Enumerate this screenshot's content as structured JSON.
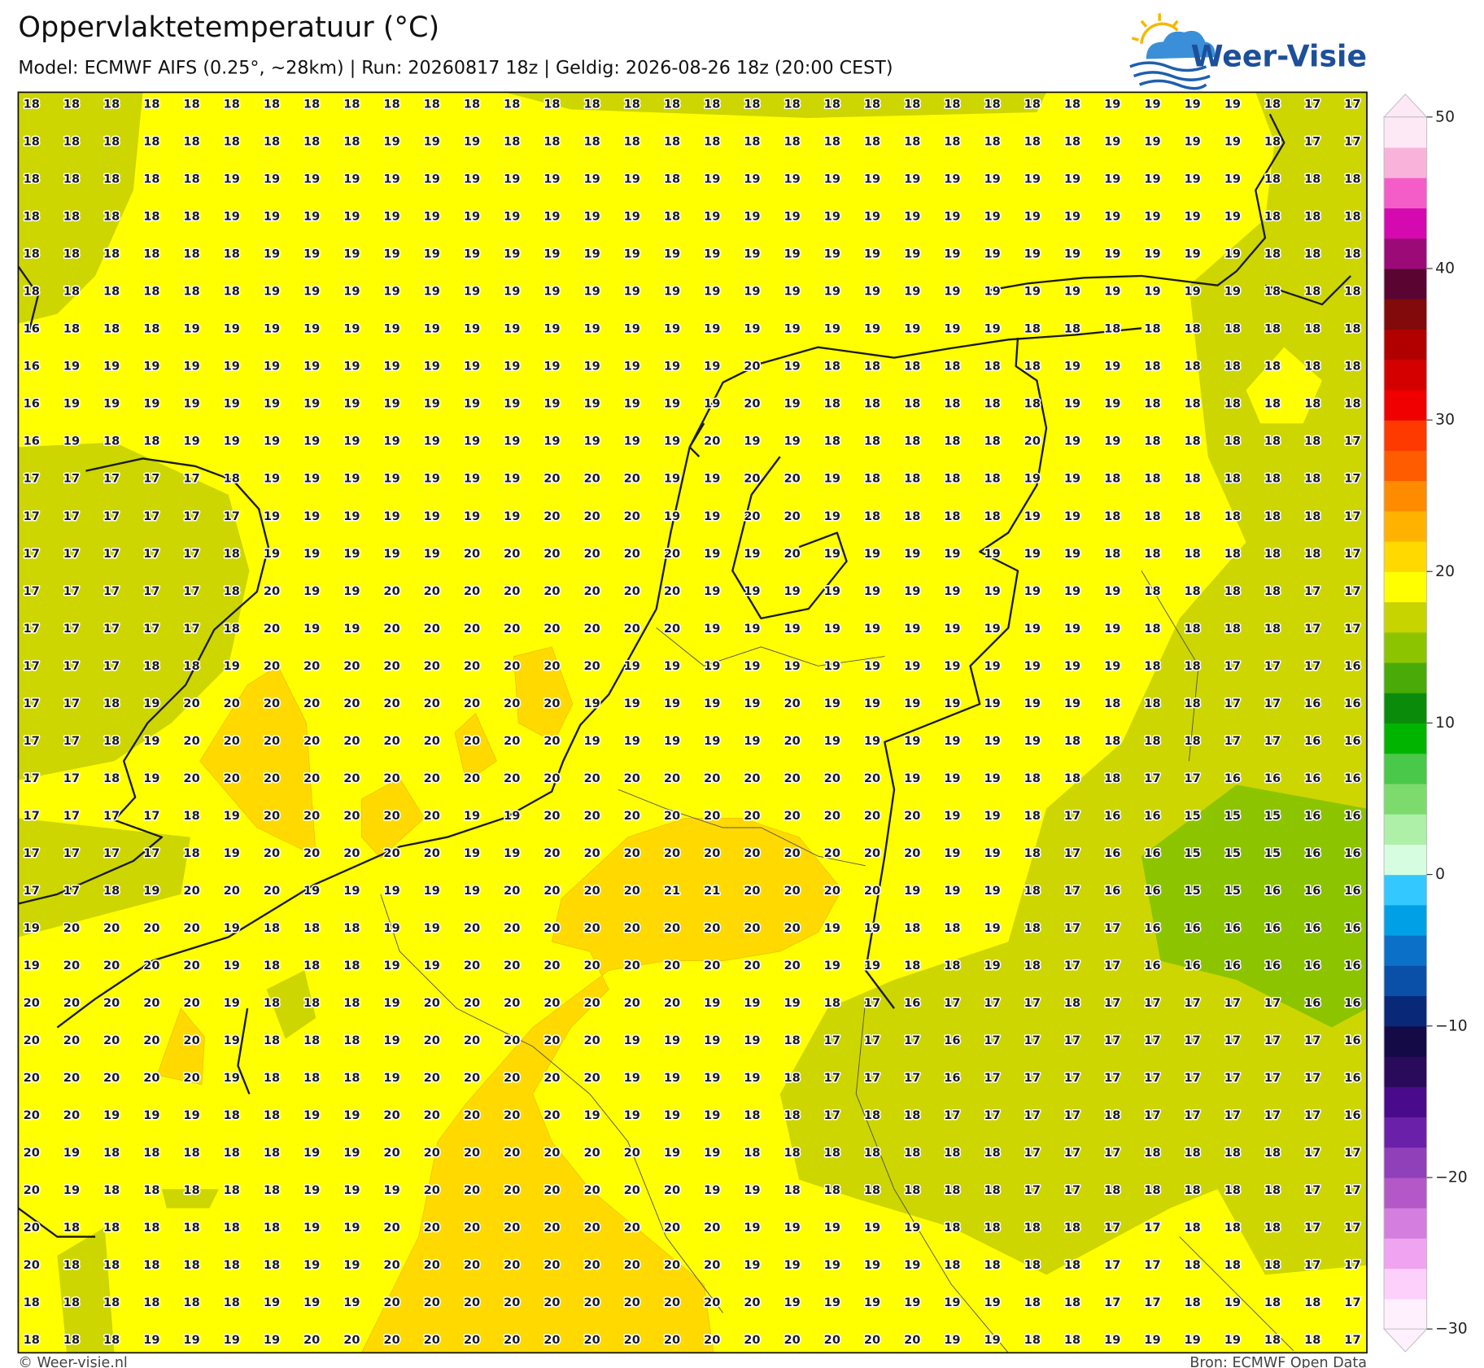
{
  "header": {
    "title": "Oppervlaktetemperatuur (°C)",
    "subtitle": "Model: ECMWF AIFS (0.25°, ~28km)  |  Run: 20260817 18z  |  Geldig: 2026-08-26 18z (20:00 CEST)",
    "logo": "Weer-Visie"
  },
  "grid": {
    "rows": [
      [
        18,
        18,
        18,
        18,
        18,
        18,
        18,
        18,
        18,
        18,
        18,
        18,
        18,
        18,
        18,
        18,
        18,
        18,
        18,
        18,
        18,
        18,
        18,
        18,
        18,
        18,
        18,
        19,
        19,
        19,
        19,
        18,
        17,
        17
      ],
      [
        18,
        18,
        18,
        18,
        18,
        18,
        18,
        18,
        18,
        19,
        19,
        19,
        18,
        18,
        18,
        18,
        18,
        18,
        18,
        18,
        18,
        18,
        18,
        18,
        18,
        18,
        18,
        19,
        19,
        19,
        19,
        18,
        17,
        17
      ],
      [
        18,
        18,
        18,
        18,
        18,
        19,
        19,
        19,
        19,
        19,
        19,
        19,
        19,
        19,
        19,
        19,
        18,
        19,
        19,
        19,
        19,
        19,
        19,
        19,
        19,
        19,
        19,
        19,
        19,
        19,
        19,
        18,
        18,
        18
      ],
      [
        18,
        18,
        18,
        18,
        18,
        19,
        19,
        19,
        19,
        19,
        19,
        19,
        19,
        19,
        19,
        19,
        18,
        19,
        19,
        19,
        19,
        19,
        19,
        19,
        19,
        19,
        19,
        19,
        19,
        19,
        19,
        18,
        18,
        18
      ],
      [
        18,
        18,
        18,
        18,
        18,
        18,
        19,
        19,
        19,
        19,
        19,
        19,
        19,
        19,
        19,
        19,
        19,
        19,
        19,
        19,
        19,
        19,
        19,
        19,
        19,
        19,
        19,
        19,
        19,
        19,
        19,
        18,
        18,
        18
      ],
      [
        18,
        18,
        18,
        18,
        18,
        18,
        19,
        19,
        19,
        19,
        19,
        19,
        19,
        19,
        19,
        19,
        19,
        19,
        19,
        19,
        19,
        19,
        19,
        19,
        19,
        19,
        19,
        19,
        19,
        19,
        19,
        18,
        18,
        18
      ],
      [
        16,
        18,
        18,
        18,
        19,
        19,
        19,
        19,
        19,
        19,
        19,
        19,
        19,
        19,
        19,
        19,
        19,
        19,
        19,
        19,
        19,
        19,
        19,
        19,
        19,
        18,
        18,
        18,
        18,
        18,
        18,
        18,
        18,
        18
      ],
      [
        16,
        19,
        19,
        19,
        19,
        19,
        19,
        19,
        19,
        19,
        19,
        19,
        19,
        19,
        19,
        19,
        19,
        19,
        20,
        19,
        18,
        18,
        18,
        18,
        18,
        18,
        19,
        19,
        18,
        18,
        18,
        18,
        18,
        18
      ],
      [
        16,
        19,
        19,
        19,
        19,
        19,
        19,
        19,
        19,
        19,
        19,
        19,
        19,
        19,
        19,
        19,
        19,
        19,
        20,
        19,
        18,
        18,
        18,
        18,
        18,
        18,
        19,
        19,
        18,
        18,
        18,
        18,
        18,
        18
      ],
      [
        16,
        19,
        18,
        18,
        19,
        19,
        19,
        19,
        19,
        19,
        19,
        19,
        19,
        19,
        19,
        19,
        19,
        20,
        19,
        19,
        18,
        18,
        18,
        18,
        18,
        20,
        19,
        19,
        18,
        18,
        18,
        18,
        18,
        17
      ],
      [
        17,
        17,
        17,
        17,
        17,
        18,
        19,
        19,
        19,
        19,
        19,
        19,
        19,
        20,
        20,
        20,
        19,
        19,
        20,
        20,
        19,
        18,
        18,
        18,
        18,
        19,
        19,
        18,
        18,
        18,
        18,
        18,
        18,
        17
      ],
      [
        17,
        17,
        17,
        17,
        17,
        17,
        19,
        19,
        19,
        19,
        19,
        19,
        19,
        20,
        20,
        20,
        19,
        19,
        20,
        20,
        19,
        18,
        18,
        18,
        18,
        19,
        19,
        18,
        18,
        18,
        18,
        18,
        18,
        17
      ],
      [
        17,
        17,
        17,
        17,
        17,
        18,
        19,
        19,
        19,
        19,
        19,
        20,
        20,
        20,
        20,
        20,
        20,
        19,
        19,
        20,
        19,
        19,
        19,
        19,
        19,
        19,
        19,
        18,
        18,
        18,
        18,
        18,
        18,
        17
      ],
      [
        17,
        17,
        17,
        17,
        17,
        18,
        20,
        19,
        19,
        20,
        20,
        20,
        20,
        20,
        20,
        20,
        20,
        19,
        19,
        19,
        19,
        19,
        19,
        19,
        19,
        19,
        19,
        19,
        18,
        18,
        18,
        18,
        17,
        17
      ],
      [
        17,
        17,
        17,
        17,
        17,
        18,
        20,
        19,
        19,
        20,
        20,
        20,
        20,
        20,
        20,
        20,
        20,
        19,
        19,
        19,
        19,
        19,
        19,
        19,
        19,
        19,
        19,
        19,
        18,
        18,
        18,
        18,
        17,
        17
      ],
      [
        17,
        17,
        17,
        18,
        18,
        19,
        20,
        20,
        20,
        20,
        20,
        20,
        20,
        20,
        20,
        19,
        19,
        19,
        19,
        19,
        19,
        19,
        19,
        19,
        19,
        19,
        19,
        19,
        18,
        18,
        17,
        17,
        17,
        16
      ],
      [
        17,
        17,
        18,
        19,
        20,
        20,
        20,
        20,
        20,
        20,
        20,
        20,
        20,
        20,
        19,
        19,
        19,
        19,
        19,
        20,
        19,
        19,
        19,
        19,
        19,
        19,
        19,
        18,
        18,
        18,
        17,
        17,
        16,
        16
      ],
      [
        17,
        17,
        18,
        19,
        20,
        20,
        20,
        20,
        20,
        20,
        20,
        20,
        20,
        20,
        19,
        19,
        19,
        19,
        19,
        20,
        19,
        19,
        19,
        19,
        19,
        19,
        18,
        18,
        18,
        18,
        17,
        17,
        16,
        16
      ],
      [
        17,
        17,
        18,
        19,
        20,
        20,
        20,
        20,
        20,
        20,
        20,
        20,
        20,
        20,
        20,
        20,
        20,
        20,
        20,
        20,
        20,
        20,
        19,
        19,
        19,
        18,
        18,
        18,
        17,
        17,
        16,
        16,
        16,
        16
      ],
      [
        17,
        17,
        17,
        17,
        18,
        19,
        20,
        20,
        20,
        20,
        20,
        19,
        19,
        20,
        20,
        20,
        20,
        20,
        20,
        20,
        20,
        20,
        20,
        19,
        19,
        18,
        17,
        16,
        16,
        15,
        15,
        15,
        16,
        16
      ],
      [
        17,
        17,
        17,
        17,
        18,
        19,
        20,
        20,
        20,
        20,
        20,
        19,
        19,
        20,
        20,
        20,
        20,
        20,
        20,
        20,
        20,
        20,
        20,
        19,
        19,
        18,
        17,
        16,
        16,
        15,
        15,
        15,
        16,
        16
      ],
      [
        17,
        17,
        18,
        19,
        20,
        20,
        20,
        19,
        19,
        19,
        19,
        19,
        20,
        20,
        20,
        20,
        21,
        21,
        20,
        20,
        20,
        20,
        19,
        19,
        19,
        18,
        17,
        16,
        16,
        15,
        15,
        16,
        16,
        16
      ],
      [
        19,
        20,
        20,
        20,
        20,
        19,
        18,
        18,
        18,
        19,
        19,
        20,
        20,
        20,
        20,
        20,
        20,
        20,
        20,
        20,
        19,
        19,
        18,
        18,
        19,
        18,
        17,
        17,
        16,
        16,
        16,
        16,
        16,
        16
      ],
      [
        19,
        20,
        20,
        20,
        20,
        19,
        18,
        18,
        18,
        19,
        19,
        20,
        20,
        20,
        20,
        20,
        20,
        20,
        20,
        20,
        19,
        19,
        18,
        18,
        19,
        18,
        17,
        17,
        16,
        16,
        16,
        16,
        16,
        16
      ],
      [
        20,
        20,
        20,
        20,
        20,
        19,
        18,
        18,
        18,
        19,
        20,
        20,
        20,
        20,
        20,
        20,
        20,
        19,
        19,
        19,
        18,
        17,
        16,
        17,
        17,
        17,
        18,
        17,
        17,
        17,
        17,
        17,
        16,
        16
      ],
      [
        20,
        20,
        20,
        20,
        20,
        19,
        18,
        18,
        18,
        19,
        20,
        20,
        20,
        20,
        20,
        19,
        19,
        19,
        19,
        18,
        17,
        17,
        17,
        16,
        17,
        17,
        17,
        17,
        17,
        17,
        17,
        17,
        17,
        16
      ],
      [
        20,
        20,
        20,
        20,
        20,
        19,
        18,
        18,
        18,
        19,
        20,
        20,
        20,
        20,
        20,
        19,
        19,
        19,
        19,
        18,
        17,
        17,
        17,
        16,
        17,
        17,
        17,
        17,
        17,
        17,
        17,
        17,
        17,
        16
      ],
      [
        20,
        20,
        19,
        19,
        19,
        18,
        18,
        19,
        19,
        20,
        20,
        20,
        20,
        20,
        19,
        19,
        19,
        19,
        18,
        18,
        17,
        18,
        18,
        17,
        17,
        17,
        17,
        18,
        17,
        17,
        17,
        17,
        17,
        16
      ],
      [
        20,
        19,
        18,
        18,
        18,
        18,
        18,
        19,
        19,
        20,
        20,
        20,
        20,
        20,
        20,
        20,
        19,
        19,
        18,
        18,
        18,
        18,
        18,
        18,
        18,
        17,
        17,
        17,
        18,
        18,
        18,
        18,
        17,
        17
      ],
      [
        20,
        19,
        18,
        18,
        18,
        18,
        18,
        19,
        19,
        19,
        20,
        20,
        20,
        20,
        20,
        20,
        20,
        19,
        19,
        18,
        18,
        18,
        18,
        18,
        18,
        17,
        17,
        18,
        18,
        18,
        18,
        18,
        17,
        17
      ],
      [
        20,
        18,
        18,
        18,
        18,
        18,
        18,
        19,
        19,
        20,
        20,
        20,
        20,
        20,
        20,
        20,
        20,
        20,
        19,
        19,
        19,
        19,
        19,
        18,
        18,
        18,
        18,
        17,
        17,
        18,
        18,
        18,
        17,
        17
      ],
      [
        20,
        18,
        18,
        18,
        18,
        18,
        18,
        19,
        19,
        20,
        20,
        20,
        20,
        20,
        20,
        20,
        20,
        20,
        19,
        19,
        19,
        19,
        19,
        18,
        18,
        18,
        18,
        17,
        17,
        18,
        18,
        18,
        17,
        17
      ],
      [
        18,
        18,
        18,
        18,
        18,
        18,
        19,
        19,
        19,
        20,
        20,
        20,
        20,
        20,
        20,
        20,
        20,
        20,
        20,
        19,
        19,
        19,
        19,
        19,
        19,
        18,
        18,
        17,
        17,
        18,
        19,
        18,
        18,
        17
      ],
      [
        18,
        18,
        18,
        19,
        19,
        19,
        19,
        20,
        20,
        20,
        20,
        20,
        20,
        20,
        20,
        20,
        20,
        20,
        20,
        20,
        20,
        20,
        20,
        19,
        19,
        18,
        18,
        19,
        19,
        19,
        19,
        18,
        18,
        17
      ]
    ]
  },
  "colorbar": {
    "range": [
      -30,
      50
    ],
    "ticks": [
      {
        "value": -30,
        "label": "−30"
      },
      {
        "value": -20,
        "label": "−20"
      },
      {
        "value": -10,
        "label": "−10"
      },
      0,
      10,
      20,
      30,
      40,
      50
    ],
    "colors": [
      "#fff0fd",
      "#fcd0fa",
      "#f0a4f0",
      "#d47ee0",
      "#b458c8",
      "#9040b8",
      "#6a20a8",
      "#4a0a8c",
      "#2a0a5a",
      "#140a46",
      "#0a2878",
      "#0a50a8",
      "#0a70c8",
      "#00a0e6",
      "#33c8ff",
      "#d6fde0",
      "#aef0a8",
      "#7ddb6e",
      "#4ac84a",
      "#00b400",
      "#0a8c0a",
      "#4aaa08",
      "#8cc400",
      "#c8d400",
      "#ffff00",
      "#ffd900",
      "#ffb300",
      "#ff8c00",
      "#ff5c00",
      "#ff3a00",
      "#f00000",
      "#d40000",
      "#b00000",
      "#820a0a",
      "#5a0531",
      "#9c0a78",
      "#d40ab0",
      "#f45cc8",
      "#f9b2da",
      "#fde8f6"
    ]
  },
  "footer": {
    "left": "© Weer-visie.nl",
    "right": "Bron: ECMWF Open Data"
  }
}
